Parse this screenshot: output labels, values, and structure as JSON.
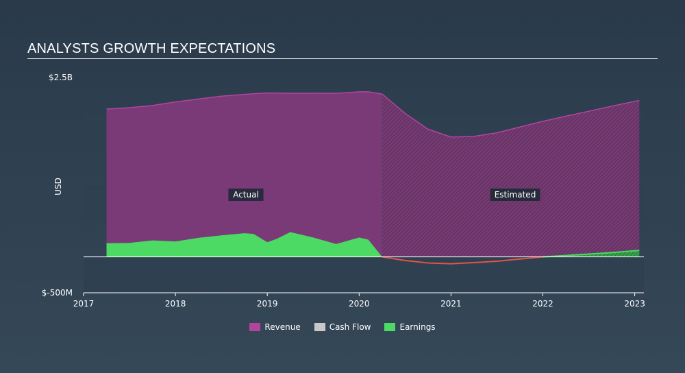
{
  "page": {
    "title": "ANALYSTS GROWTH EXPECTATIONS"
  },
  "colors": {
    "revenue": "#7a3a78",
    "revenue_line": "#b0459f",
    "earnings": "#4cd964",
    "earnings_negative": "#e5534b",
    "cash_flow": "#c8c8c8",
    "band": "#2f4050",
    "zero_line": "#ffffff"
  },
  "chart_data": {
    "type": "area",
    "title": "ANALYSTS GROWTH EXPECTATIONS",
    "ylabel": "USD",
    "xlabel": "",
    "ylim": [
      -500,
      2500
    ],
    "y_tick_labels": [
      {
        "value": 2500,
        "label": "$2.5B"
      },
      {
        "value": -500,
        "label": "$-500M"
      }
    ],
    "xlim": [
      2017,
      2023.1
    ],
    "x_ticks": [
      2017,
      2018,
      2019,
      2020,
      2021,
      2022,
      2023
    ],
    "x_tick_labels": [
      "2017",
      "2018",
      "2019",
      "2020",
      "2021",
      "2022",
      "2023"
    ],
    "split_x": 2020.25,
    "annotations": {
      "actual": "Actual",
      "estimated": "Estimated"
    },
    "legend": [
      {
        "key": "revenue",
        "label": "Revenue"
      },
      {
        "key": "cash_flow",
        "label": "Cash Flow"
      },
      {
        "key": "earnings",
        "label": "Earnings"
      }
    ],
    "series": [
      {
        "name": "Revenue",
        "key": "revenue",
        "x": [
          2017.25,
          2017.5,
          2017.75,
          2018.0,
          2018.25,
          2018.5,
          2018.75,
          2019.0,
          2019.25,
          2019.5,
          2019.75,
          2020.0,
          2020.1,
          2020.25,
          2020.5,
          2020.75,
          2021.0,
          2021.25,
          2021.5,
          2021.75,
          2022.0,
          2022.25,
          2022.5,
          2022.75,
          2023.05
        ],
        "y": [
          2060,
          2080,
          2110,
          2160,
          2200,
          2240,
          2265,
          2285,
          2280,
          2280,
          2280,
          2300,
          2300,
          2270,
          2000,
          1780,
          1670,
          1680,
          1730,
          1810,
          1890,
          1960,
          2030,
          2100,
          2180
        ]
      },
      {
        "name": "Earnings",
        "key": "earnings",
        "x": [
          2017.25,
          2017.5,
          2017.75,
          2018.0,
          2018.25,
          2018.5,
          2018.75,
          2018.85,
          2019.0,
          2019.1,
          2019.25,
          2019.5,
          2019.75,
          2020.0,
          2020.1,
          2020.25,
          2020.5,
          2020.75,
          2021.0,
          2021.25,
          2021.5,
          2021.75,
          2022.0,
          2022.25,
          2022.5,
          2022.75,
          2023.05
        ],
        "y": [
          190,
          195,
          230,
          215,
          265,
          300,
          330,
          320,
          205,
          250,
          345,
          270,
          180,
          270,
          240,
          0,
          -50,
          -85,
          -95,
          -80,
          -60,
          -30,
          0,
          20,
          40,
          60,
          90
        ]
      }
    ]
  }
}
